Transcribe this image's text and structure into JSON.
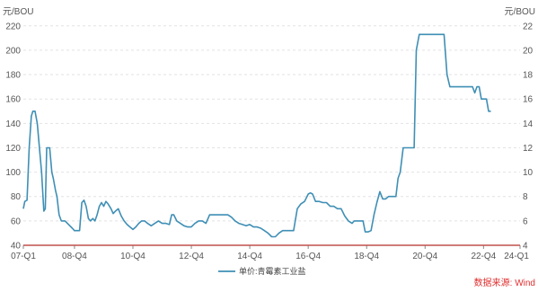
{
  "chart_data": {
    "type": "line",
    "left_unit": "元/BOU",
    "right_unit": "元/BOU",
    "y_ticks": [
      40,
      60,
      80,
      100,
      120,
      140,
      160,
      180,
      200,
      220
    ],
    "right_y_ticks": [
      40,
      60,
      80,
      100,
      120,
      140,
      160,
      180,
      200,
      220
    ],
    "right_y_tick_labels": [
      "4",
      "6",
      "8",
      "10",
      "12",
      "14",
      "16",
      "18",
      "20",
      "22"
    ],
    "ylim": [
      40,
      225
    ],
    "xlim": [
      0,
      68
    ],
    "x_ticks": [
      {
        "x": 0,
        "label": "07-Q1"
      },
      {
        "x": 7,
        "label": "08-Q4"
      },
      {
        "x": 15,
        "label": "10-Q4"
      },
      {
        "x": 23,
        "label": "12-Q4"
      },
      {
        "x": 31,
        "label": "14-Q4"
      },
      {
        "x": 39,
        "label": "16-Q4"
      },
      {
        "x": 47,
        "label": "18-Q4"
      },
      {
        "x": 55,
        "label": "20-Q4"
      },
      {
        "x": 63,
        "label": "22-Q4"
      },
      {
        "x": 68,
        "label": "24-Q1"
      }
    ],
    "grid": "horizontal dashed",
    "line_color": "#3f8fb5",
    "legend_position": "bottom",
    "series": [
      {
        "name": "单价:青霉素工业盐",
        "points": [
          [
            0.0,
            70
          ],
          [
            0.2,
            76
          ],
          [
            0.5,
            77
          ],
          [
            0.8,
            120
          ],
          [
            1.1,
            146
          ],
          [
            1.3,
            150
          ],
          [
            1.6,
            150
          ],
          [
            1.9,
            140
          ],
          [
            2.2,
            120
          ],
          [
            2.5,
            100
          ],
          [
            2.8,
            68
          ],
          [
            3.0,
            70
          ],
          [
            3.2,
            120
          ],
          [
            3.6,
            120
          ],
          [
            3.9,
            100
          ],
          [
            4.1,
            95
          ],
          [
            4.4,
            85
          ],
          [
            4.6,
            80
          ],
          [
            4.9,
            65
          ],
          [
            5.2,
            60
          ],
          [
            5.7,
            60
          ],
          [
            6.2,
            57
          ],
          [
            6.7,
            54
          ],
          [
            7.0,
            52
          ],
          [
            7.7,
            52
          ],
          [
            8.0,
            75
          ],
          [
            8.3,
            77
          ],
          [
            8.6,
            72
          ],
          [
            8.9,
            62
          ],
          [
            9.2,
            60
          ],
          [
            9.5,
            62
          ],
          [
            9.8,
            60
          ],
          [
            10.1,
            65
          ],
          [
            10.4,
            72
          ],
          [
            10.7,
            75
          ],
          [
            11.0,
            72
          ],
          [
            11.3,
            76
          ],
          [
            11.6,
            74
          ],
          [
            12.0,
            70
          ],
          [
            12.3,
            66
          ],
          [
            12.6,
            68
          ],
          [
            13.0,
            70
          ],
          [
            13.4,
            64
          ],
          [
            13.8,
            60
          ],
          [
            14.2,
            57
          ],
          [
            14.6,
            55
          ],
          [
            15.0,
            53
          ],
          [
            15.4,
            55
          ],
          [
            15.8,
            58
          ],
          [
            16.2,
            60
          ],
          [
            16.6,
            60
          ],
          [
            17.0,
            58
          ],
          [
            17.5,
            56
          ],
          [
            18.0,
            58
          ],
          [
            18.5,
            60
          ],
          [
            19.0,
            58
          ],
          [
            19.5,
            58
          ],
          [
            20.0,
            57
          ],
          [
            20.3,
            65
          ],
          [
            20.6,
            65
          ],
          [
            21.0,
            60
          ],
          [
            21.5,
            58
          ],
          [
            22.0,
            56
          ],
          [
            22.5,
            55
          ],
          [
            23.0,
            55
          ],
          [
            23.5,
            58
          ],
          [
            24.0,
            60
          ],
          [
            24.5,
            60
          ],
          [
            25.0,
            58
          ],
          [
            25.5,
            65
          ],
          [
            26.0,
            65
          ],
          [
            27.0,
            65
          ],
          [
            28.0,
            65
          ],
          [
            28.5,
            63
          ],
          [
            29.0,
            60
          ],
          [
            29.5,
            58
          ],
          [
            30.0,
            57
          ],
          [
            30.5,
            56
          ],
          [
            31.0,
            57
          ],
          [
            31.5,
            55
          ],
          [
            32.0,
            55
          ],
          [
            32.5,
            54
          ],
          [
            33.0,
            52
          ],
          [
            33.5,
            50
          ],
          [
            34.0,
            47
          ],
          [
            34.5,
            47
          ],
          [
            35.0,
            50
          ],
          [
            35.5,
            52
          ],
          [
            36.0,
            52
          ],
          [
            36.5,
            52
          ],
          [
            37.0,
            52
          ],
          [
            37.5,
            70
          ],
          [
            38.0,
            74
          ],
          [
            38.5,
            76
          ],
          [
            39.0,
            82
          ],
          [
            39.3,
            83
          ],
          [
            39.6,
            82
          ],
          [
            40.0,
            76
          ],
          [
            40.5,
            76
          ],
          [
            41.0,
            75
          ],
          [
            41.5,
            75
          ],
          [
            42.0,
            72
          ],
          [
            42.5,
            72
          ],
          [
            43.0,
            70
          ],
          [
            43.5,
            70
          ],
          [
            44.0,
            64
          ],
          [
            44.5,
            60
          ],
          [
            45.0,
            58
          ],
          [
            45.3,
            60
          ],
          [
            45.6,
            60
          ],
          [
            46.0,
            60
          ],
          [
            46.5,
            60
          ],
          [
            46.8,
            51
          ],
          [
            47.2,
            51
          ],
          [
            47.6,
            52
          ],
          [
            48.0,
            65
          ],
          [
            48.4,
            75
          ],
          [
            48.8,
            84
          ],
          [
            49.2,
            78
          ],
          [
            49.6,
            78
          ],
          [
            50.0,
            80
          ],
          [
            50.5,
            80
          ],
          [
            51.0,
            80
          ],
          [
            51.3,
            95
          ],
          [
            51.6,
            100
          ],
          [
            52.0,
            120
          ],
          [
            52.5,
            120
          ],
          [
            53.0,
            120
          ],
          [
            53.5,
            120
          ],
          [
            53.8,
            200
          ],
          [
            54.2,
            213
          ],
          [
            55.0,
            213
          ],
          [
            56.0,
            213
          ],
          [
            57.0,
            213
          ],
          [
            57.6,
            213
          ],
          [
            58.0,
            180
          ],
          [
            58.4,
            170
          ],
          [
            59.0,
            170
          ],
          [
            60.0,
            170
          ],
          [
            61.0,
            170
          ],
          [
            61.5,
            170
          ],
          [
            61.8,
            165
          ],
          [
            62.1,
            170
          ],
          [
            62.4,
            170
          ],
          [
            62.7,
            160
          ],
          [
            63.0,
            160
          ],
          [
            63.4,
            160
          ],
          [
            63.7,
            150
          ],
          [
            64.0,
            150
          ]
        ]
      }
    ],
    "source_text": "数据来源: Wind"
  }
}
